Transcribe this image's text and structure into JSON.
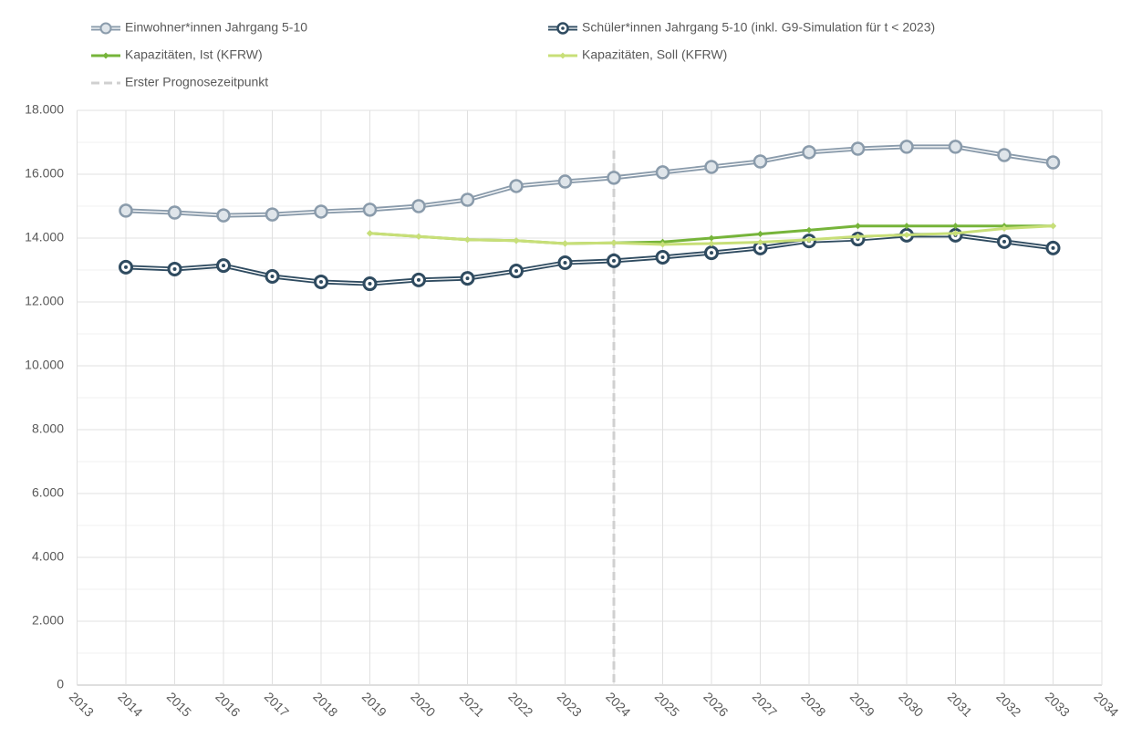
{
  "chart_data": {
    "type": "line",
    "x": [
      2014,
      2015,
      2016,
      2017,
      2018,
      2019,
      2020,
      2021,
      2022,
      2023,
      2024,
      2025,
      2026,
      2027,
      2028,
      2029,
      2030,
      2031,
      2032,
      2033
    ],
    "series": [
      {
        "name": "Einwohner*innen Jahrgang 5-10",
        "color": "#8a9bab",
        "marker": "ring",
        "values": [
          14860,
          14800,
          14710,
          14740,
          14830,
          14890,
          15000,
          15200,
          15630,
          15770,
          15890,
          16060,
          16230,
          16400,
          16690,
          16800,
          16860,
          16860,
          16600,
          16370
        ]
      },
      {
        "name": "Schüler*innen Jahrgang 5-10 (inkl. G9-Simulation für t < 2023)",
        "color": "#2f4b60",
        "marker": "dot",
        "values": [
          13090,
          13030,
          13140,
          12800,
          12630,
          12570,
          12690,
          12740,
          12970,
          13230,
          13290,
          13400,
          13540,
          13690,
          13910,
          13970,
          14090,
          14090,
          13890,
          13690
        ]
      },
      {
        "name": "Kapazitäten, Ist (KFRW)",
        "color": "#76b43a",
        "marker": "small",
        "values": [
          null,
          null,
          null,
          null,
          null,
          14150,
          14050,
          13950,
          13920,
          13830,
          13850,
          13880,
          14000,
          14130,
          14250,
          14380,
          14380,
          14380,
          14380,
          14380
        ]
      },
      {
        "name": "Kapazitäten, Soll (KFRW)",
        "color": "#c8df78",
        "marker": "small",
        "values": [
          null,
          null,
          null,
          null,
          null,
          14150,
          14050,
          13950,
          13920,
          13830,
          13850,
          13800,
          13830,
          13870,
          13950,
          14050,
          14100,
          14150,
          14300,
          14380
        ]
      }
    ],
    "vline": {
      "name": "Erster Prognosezeitpunkt",
      "x": 2024,
      "color": "#d0d0d0"
    },
    "xlim": [
      2013,
      2034
    ],
    "xticks": [
      2013,
      2014,
      2015,
      2016,
      2017,
      2018,
      2019,
      2020,
      2021,
      2022,
      2023,
      2024,
      2025,
      2026,
      2027,
      2028,
      2029,
      2030,
      2031,
      2032,
      2033,
      2034
    ],
    "ylim": [
      0,
      18000
    ],
    "yticks": [
      0,
      {
        "value": 2000,
        "label": "2.000"
      },
      {
        "value": 4000,
        "label": "4.000"
      },
      {
        "value": 6000,
        "label": "6.000"
      },
      {
        "value": 8000,
        "label": "8.000"
      },
      {
        "value": 10000,
        "label": "10.000"
      },
      {
        "value": 12000,
        "label": "12.000"
      },
      {
        "value": 14000,
        "label": "14.000"
      },
      {
        "value": 16000,
        "label": "16.000"
      },
      {
        "value": 18000,
        "label": "18.000"
      }
    ],
    "grid": true
  }
}
